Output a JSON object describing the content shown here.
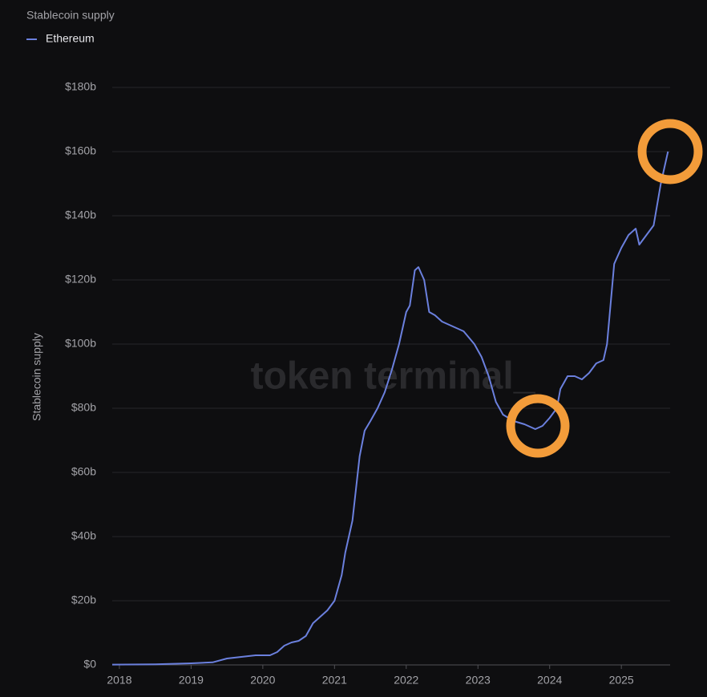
{
  "chart_data": {
    "type": "line",
    "title": "Stablecoin supply",
    "y_label": "Stablecoin supply",
    "watermark": "token terminal_",
    "x": [
      2017.9,
      2018.5,
      2019.0,
      2019.3,
      2019.5,
      2019.7,
      2019.9,
      2020.1,
      2020.2,
      2020.3,
      2020.4,
      2020.5,
      2020.6,
      2020.7,
      2020.8,
      2020.9,
      2021.0,
      2021.1,
      2021.15,
      2021.25,
      2021.35,
      2021.42,
      2021.5,
      2021.6,
      2021.7,
      2021.8,
      2021.9,
      2022.0,
      2022.05,
      2022.12,
      2022.17,
      2022.25,
      2022.32,
      2022.4,
      2022.5,
      2022.6,
      2022.7,
      2022.8,
      2022.95,
      2023.05,
      2023.15,
      2023.25,
      2023.35,
      2023.5,
      2023.65,
      2023.8,
      2023.9,
      2024.0,
      2024.1,
      2024.15,
      2024.25,
      2024.35,
      2024.45,
      2024.55,
      2024.65,
      2024.75,
      2024.8,
      2024.9,
      2025.0,
      2025.1,
      2025.2,
      2025.25,
      2025.35,
      2025.45,
      2025.55,
      2025.65
    ],
    "series": [
      {
        "name": "Ethereum",
        "color": "#6b80de",
        "values": [
          0.1,
          0.2,
          0.5,
          0.8,
          2,
          2.5,
          3,
          3,
          4,
          6,
          7,
          7.5,
          9,
          13,
          15,
          17,
          20,
          28,
          35,
          45,
          65,
          73,
          76,
          80,
          85,
          92,
          100,
          110,
          112,
          123,
          124,
          120,
          110,
          109,
          107,
          106,
          105,
          104,
          100,
          96,
          90,
          82,
          78,
          76,
          75,
          73.5,
          74.5,
          77,
          80,
          86,
          90,
          90,
          89,
          91,
          94,
          95,
          100,
          125,
          130,
          134,
          136,
          131,
          134,
          137,
          150,
          160
        ]
      }
    ],
    "xlim": [
      2017.9,
      2025.68
    ],
    "xticks": [
      2018,
      2019,
      2020,
      2021,
      2022,
      2023,
      2024,
      2025
    ],
    "ylim": [
      0,
      180
    ],
    "yticks": [
      {
        "value": 0,
        "label": "$0"
      },
      {
        "value": 20,
        "label": "$20b"
      },
      {
        "value": 40,
        "label": "$40b"
      },
      {
        "value": 60,
        "label": "$60b"
      },
      {
        "value": 80,
        "label": "$80b"
      },
      {
        "value": 100,
        "label": "$100b"
      },
      {
        "value": 120,
        "label": "$120b"
      },
      {
        "value": 140,
        "label": "$140b"
      },
      {
        "value": 160,
        "label": "$160b"
      },
      {
        "value": 180,
        "label": "$180b"
      }
    ],
    "grid": true
  }
}
